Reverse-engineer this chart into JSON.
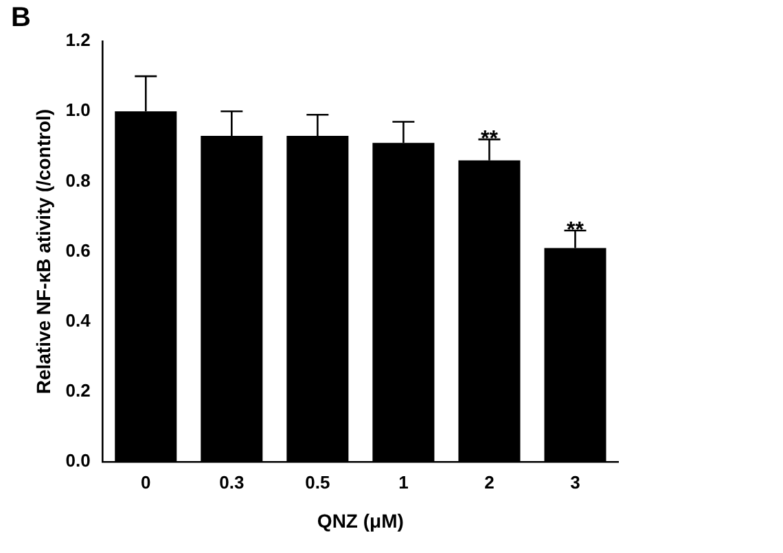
{
  "chart_data": {
    "type": "bar",
    "title": "B",
    "xlabel": "QNZ (μM)",
    "ylabel": "Relative NF-κB ativity (/control)",
    "categories": [
      "0",
      "0.3",
      "0.5",
      "1",
      "2",
      "3"
    ],
    "values": [
      1.0,
      0.93,
      0.93,
      0.91,
      0.86,
      0.61
    ],
    "errors": [
      [
        1.0,
        1.1
      ],
      [
        0.93,
        1.0
      ],
      [
        0.93,
        0.99
      ],
      [
        0.91,
        0.97
      ],
      [
        0.86,
        0.92
      ],
      [
        0.61,
        0.66
      ]
    ],
    "color": "#000000",
    "ylim": [
      0,
      1.2
    ],
    "yticks": [
      {
        "value": 0,
        "label": "0.0"
      },
      {
        "value": 0.2,
        "label": "0.2"
      },
      {
        "value": 0.4,
        "label": "0.4"
      },
      {
        "value": 0.6,
        "label": "0.6"
      },
      {
        "value": 0.8,
        "label": "0.8"
      },
      {
        "value": 1,
        "label": "1.0"
      },
      {
        "value": 1.2,
        "label": "1.2"
      }
    ],
    "annotations": [
      {
        "text": "**",
        "x": "2",
        "y": 0.92
      },
      {
        "text": "**",
        "x": "3",
        "y": 0.66
      }
    ],
    "grid": false,
    "legend": false
  }
}
